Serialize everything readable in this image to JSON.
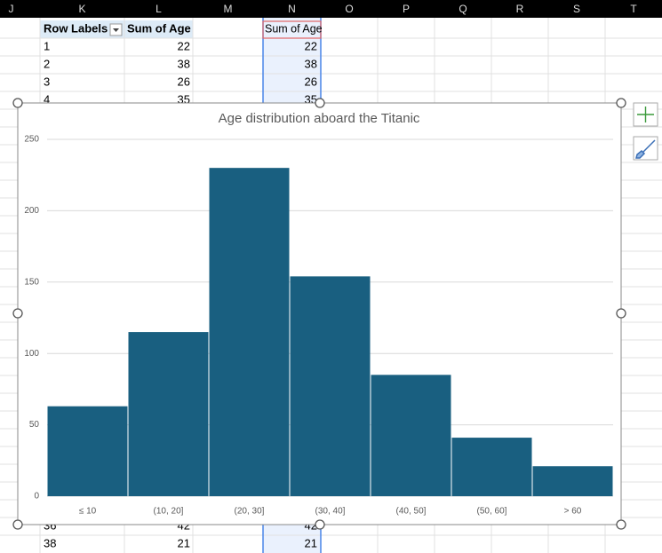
{
  "sheet": {
    "columns": [
      "J",
      "K",
      "L",
      "M",
      "N",
      "O",
      "P",
      "Q",
      "R",
      "S",
      "T"
    ],
    "pivot": {
      "headers": [
        "Row Labels",
        "Sum of Age"
      ],
      "rows": [
        [
          1,
          22
        ],
        [
          2,
          38
        ],
        [
          3,
          26
        ],
        [
          4,
          35
        ],
        [
          36,
          42
        ],
        [
          38,
          21
        ]
      ]
    },
    "selected_column": {
      "header": "Sum of Age",
      "values": [
        22,
        38,
        26,
        35,
        42,
        21
      ]
    }
  },
  "chart_data": {
    "type": "bar",
    "title": "Age distribution aboard the Titanic",
    "categories": [
      "≤ 10",
      "(10, 20]",
      "(20, 30]",
      "(30, 40]",
      "(40, 50]",
      "(50, 60]",
      "> 60"
    ],
    "values": [
      63,
      115,
      230,
      154,
      85,
      41,
      21
    ],
    "color": "#195f80",
    "ylim": [
      0,
      250
    ],
    "yticks": [
      0,
      50,
      100,
      150,
      200,
      250
    ],
    "grid": true
  }
}
